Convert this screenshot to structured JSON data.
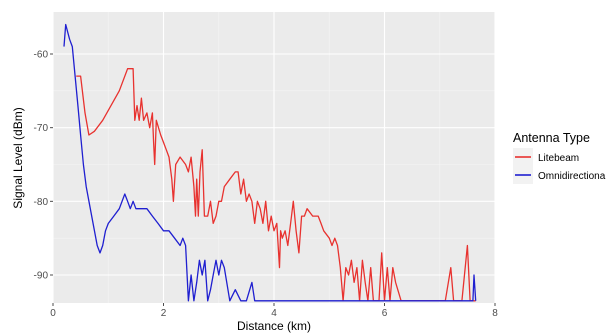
{
  "chart_data": {
    "type": "line",
    "title": "",
    "xlabel": "Distance (km)",
    "ylabel": "Signal Level (dBm)",
    "xlim": [
      0,
      8
    ],
    "ylim": [
      -93.8,
      -54.3
    ],
    "xticks": [
      0,
      2,
      4,
      6,
      8
    ],
    "yticks": [
      -60,
      -70,
      -80,
      -90
    ],
    "grid": true,
    "legend": {
      "title": "Antenna Type",
      "placement": "right"
    },
    "series": [
      {
        "name": "Litebeam",
        "color": "#e8322f",
        "points": [
          [
            0.42,
            -63
          ],
          [
            0.5,
            -63
          ],
          [
            0.58,
            -68
          ],
          [
            0.65,
            -71
          ],
          [
            0.75,
            -70.5
          ],
          [
            0.9,
            -69
          ],
          [
            1.05,
            -67
          ],
          [
            1.2,
            -65
          ],
          [
            1.35,
            -62
          ],
          [
            1.45,
            -62
          ],
          [
            1.48,
            -69
          ],
          [
            1.52,
            -67
          ],
          [
            1.56,
            -69
          ],
          [
            1.6,
            -66
          ],
          [
            1.64,
            -69
          ],
          [
            1.7,
            -68
          ],
          [
            1.75,
            -70
          ],
          [
            1.8,
            -68
          ],
          [
            1.82,
            -72
          ],
          [
            1.84,
            -75
          ],
          [
            1.87,
            -69
          ],
          [
            1.95,
            -71
          ],
          [
            2.0,
            -72
          ],
          [
            2.05,
            -73
          ],
          [
            2.1,
            -74
          ],
          [
            2.15,
            -77
          ],
          [
            2.18,
            -80
          ],
          [
            2.22,
            -75
          ],
          [
            2.3,
            -74
          ],
          [
            2.4,
            -75
          ],
          [
            2.45,
            -76
          ],
          [
            2.5,
            -74
          ],
          [
            2.55,
            -78
          ],
          [
            2.58,
            -82
          ],
          [
            2.6,
            -77
          ],
          [
            2.63,
            -82
          ],
          [
            2.66,
            -76
          ],
          [
            2.7,
            -73
          ],
          [
            2.74,
            -82
          ],
          [
            2.8,
            -82
          ],
          [
            2.85,
            -80
          ],
          [
            2.9,
            -83
          ],
          [
            2.95,
            -82
          ],
          [
            3.0,
            -80
          ],
          [
            3.05,
            -80
          ],
          [
            3.1,
            -78
          ],
          [
            3.2,
            -77
          ],
          [
            3.3,
            -76
          ],
          [
            3.35,
            -76
          ],
          [
            3.4,
            -79
          ],
          [
            3.45,
            -77
          ],
          [
            3.5,
            -80
          ],
          [
            3.55,
            -79
          ],
          [
            3.6,
            -80
          ],
          [
            3.65,
            -83
          ],
          [
            3.7,
            -80
          ],
          [
            3.75,
            -81
          ],
          [
            3.8,
            -83
          ],
          [
            3.85,
            -80
          ],
          [
            3.9,
            -84
          ],
          [
            3.95,
            -82
          ],
          [
            4.0,
            -84
          ],
          [
            4.05,
            -83
          ],
          [
            4.1,
            -89
          ],
          [
            4.12,
            -84
          ],
          [
            4.15,
            -85
          ],
          [
            4.2,
            -84
          ],
          [
            4.25,
            -86
          ],
          [
            4.3,
            -83
          ],
          [
            4.35,
            -80
          ],
          [
            4.4,
            -84
          ],
          [
            4.45,
            -87
          ],
          [
            4.5,
            -82
          ],
          [
            4.55,
            -82
          ],
          [
            4.6,
            -81
          ],
          [
            4.7,
            -82
          ],
          [
            4.8,
            -82
          ],
          [
            4.85,
            -83
          ],
          [
            4.9,
            -84
          ],
          [
            5.0,
            -85
          ],
          [
            5.05,
            -86
          ],
          [
            5.1,
            -85
          ],
          [
            5.15,
            -86
          ],
          [
            5.2,
            -89
          ],
          [
            5.25,
            -93.5
          ],
          [
            5.3,
            -89
          ],
          [
            5.35,
            -90
          ],
          [
            5.4,
            -88
          ],
          [
            5.45,
            -91
          ],
          [
            5.5,
            -89
          ],
          [
            5.55,
            -93.5
          ],
          [
            5.6,
            -88
          ],
          [
            5.65,
            -91
          ],
          [
            5.7,
            -93.5
          ],
          [
            5.75,
            -89
          ],
          [
            5.8,
            -93.5
          ],
          [
            5.85,
            -93.5
          ],
          [
            5.9,
            -93.5
          ],
          [
            5.95,
            -87
          ],
          [
            6.0,
            -93.5
          ],
          [
            6.05,
            -89
          ],
          [
            6.1,
            -93.5
          ],
          [
            6.15,
            -89
          ],
          [
            6.2,
            -91
          ],
          [
            6.3,
            -93.5
          ],
          [
            6.6,
            -93.5
          ],
          [
            7.0,
            -93.5
          ],
          [
            7.1,
            -93.5
          ],
          [
            7.2,
            -89
          ],
          [
            7.25,
            -93.5
          ],
          [
            7.4,
            -93.5
          ],
          [
            7.5,
            -86
          ],
          [
            7.55,
            -93.5
          ],
          [
            7.65,
            -93.5
          ]
        ]
      },
      {
        "name": "Omnidirectiona",
        "color": "#1f1fd0",
        "points": [
          [
            0.2,
            -59
          ],
          [
            0.23,
            -56
          ],
          [
            0.3,
            -58
          ],
          [
            0.35,
            -59
          ],
          [
            0.4,
            -63
          ],
          [
            0.45,
            -67
          ],
          [
            0.5,
            -71
          ],
          [
            0.55,
            -75
          ],
          [
            0.6,
            -78
          ],
          [
            0.7,
            -82
          ],
          [
            0.8,
            -86
          ],
          [
            0.85,
            -87
          ],
          [
            0.9,
            -86
          ],
          [
            0.95,
            -84
          ],
          [
            1.0,
            -83
          ],
          [
            1.1,
            -82
          ],
          [
            1.2,
            -81
          ],
          [
            1.3,
            -79
          ],
          [
            1.35,
            -80
          ],
          [
            1.4,
            -81
          ],
          [
            1.45,
            -80
          ],
          [
            1.5,
            -81
          ],
          [
            1.6,
            -81
          ],
          [
            1.7,
            -81
          ],
          [
            1.8,
            -82
          ],
          [
            1.9,
            -83
          ],
          [
            2.0,
            -84
          ],
          [
            2.1,
            -84
          ],
          [
            2.2,
            -85
          ],
          [
            2.3,
            -86
          ],
          [
            2.35,
            -85
          ],
          [
            2.4,
            -86
          ],
          [
            2.45,
            -93.5
          ],
          [
            2.5,
            -90
          ],
          [
            2.55,
            -93.5
          ],
          [
            2.6,
            -91
          ],
          [
            2.65,
            -88
          ],
          [
            2.7,
            -90
          ],
          [
            2.75,
            -88
          ],
          [
            2.8,
            -93.5
          ],
          [
            2.85,
            -92
          ],
          [
            2.9,
            -90
          ],
          [
            2.95,
            -88
          ],
          [
            3.0,
            -90
          ],
          [
            3.05,
            -88
          ],
          [
            3.1,
            -89
          ],
          [
            3.2,
            -93.5
          ],
          [
            3.3,
            -92
          ],
          [
            3.4,
            -93.5
          ],
          [
            3.5,
            -93.5
          ],
          [
            3.6,
            -91
          ],
          [
            3.65,
            -93.5
          ],
          [
            3.7,
            -93.5
          ],
          [
            4.0,
            -93.5
          ],
          [
            5.0,
            -93.5
          ],
          [
            6.0,
            -93.5
          ],
          [
            7.0,
            -93.5
          ],
          [
            7.5,
            -93.5
          ],
          [
            7.6,
            -93.5
          ],
          [
            7.62,
            -90
          ],
          [
            7.65,
            -93.5
          ]
        ]
      }
    ]
  }
}
